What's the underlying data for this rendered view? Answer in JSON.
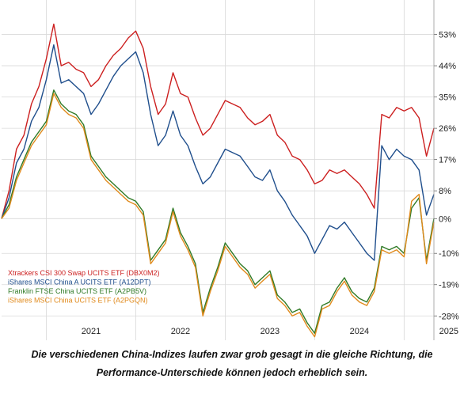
{
  "chart_data": {
    "type": "line",
    "grid": true,
    "legend_placement": "bottom-left",
    "x_ticks": [
      "2021",
      "2022",
      "2023",
      "2024",
      "2025"
    ],
    "y_ticks": [
      "53%",
      "44%",
      "35%",
      "26%",
      "17%",
      "8%",
      "0%",
      "-10%",
      "-19%",
      "-28%"
    ],
    "y_tick_values": [
      53,
      44,
      35,
      26,
      17,
      8,
      0,
      -10,
      -19,
      -28
    ],
    "ylim": [
      -35,
      57
    ],
    "x_range": [
      "2020-07",
      "2025-05"
    ],
    "series": [
      {
        "name": "Xtrackers CSI 300 Swap UCITS ETF (DBX0M2)",
        "color": "#cc1f1f",
        "points": [
          [
            "2020-07",
            0
          ],
          [
            "2020-08",
            8
          ],
          [
            "2020-09",
            20
          ],
          [
            "2020-10",
            24
          ],
          [
            "2020-11",
            33
          ],
          [
            "2020-12",
            38
          ],
          [
            "2021-01",
            46
          ],
          [
            "2021-02",
            56
          ],
          [
            "2021-03",
            44
          ],
          [
            "2021-04",
            45
          ],
          [
            "2021-05",
            43
          ],
          [
            "2021-06",
            42
          ],
          [
            "2021-07",
            38
          ],
          [
            "2021-08",
            40
          ],
          [
            "2021-09",
            44
          ],
          [
            "2021-10",
            47
          ],
          [
            "2021-11",
            49
          ],
          [
            "2021-12",
            52
          ],
          [
            "2022-01",
            54
          ],
          [
            "2022-02",
            49
          ],
          [
            "2022-03",
            38
          ],
          [
            "2022-04",
            30
          ],
          [
            "2022-05",
            33
          ],
          [
            "2022-06",
            42
          ],
          [
            "2022-07",
            36
          ],
          [
            "2022-08",
            35
          ],
          [
            "2022-09",
            29
          ],
          [
            "2022-10",
            24
          ],
          [
            "2022-11",
            26
          ],
          [
            "2022-12",
            30
          ],
          [
            "2023-01",
            34
          ],
          [
            "2023-02",
            33
          ],
          [
            "2023-03",
            32
          ],
          [
            "2023-04",
            29
          ],
          [
            "2023-05",
            27
          ],
          [
            "2023-06",
            28
          ],
          [
            "2023-07",
            30
          ],
          [
            "2023-08",
            24
          ],
          [
            "2023-09",
            22
          ],
          [
            "2023-10",
            18
          ],
          [
            "2023-11",
            17
          ],
          [
            "2023-12",
            14
          ],
          [
            "2024-01",
            10
          ],
          [
            "2024-02",
            11
          ],
          [
            "2024-03",
            14
          ],
          [
            "2024-04",
            13
          ],
          [
            "2024-05",
            14
          ],
          [
            "2024-06",
            12
          ],
          [
            "2024-07",
            10
          ],
          [
            "2024-08",
            7
          ],
          [
            "2024-09",
            3
          ],
          [
            "2024-10",
            30
          ],
          [
            "2024-11",
            29
          ],
          [
            "2024-12",
            32
          ],
          [
            "2025-01",
            31
          ],
          [
            "2025-02",
            32
          ],
          [
            "2025-03",
            29
          ],
          [
            "2025-04",
            18
          ],
          [
            "2025-05",
            26
          ]
        ]
      },
      {
        "name": "iShares MSCI China A UCITS ETF (A12DPT)",
        "color": "#1f4e8c",
        "points": [
          [
            "2020-07",
            0
          ],
          [
            "2020-08",
            6
          ],
          [
            "2020-09",
            16
          ],
          [
            "2020-10",
            20
          ],
          [
            "2020-11",
            28
          ],
          [
            "2020-12",
            32
          ],
          [
            "2021-01",
            40
          ],
          [
            "2021-02",
            50
          ],
          [
            "2021-03",
            39
          ],
          [
            "2021-04",
            40
          ],
          [
            "2021-05",
            38
          ],
          [
            "2021-06",
            36
          ],
          [
            "2021-07",
            30
          ],
          [
            "2021-08",
            33
          ],
          [
            "2021-09",
            37
          ],
          [
            "2021-10",
            41
          ],
          [
            "2021-11",
            44
          ],
          [
            "2021-12",
            46
          ],
          [
            "2022-01",
            48
          ],
          [
            "2022-02",
            42
          ],
          [
            "2022-03",
            30
          ],
          [
            "2022-04",
            21
          ],
          [
            "2022-05",
            24
          ],
          [
            "2022-06",
            31
          ],
          [
            "2022-07",
            24
          ],
          [
            "2022-08",
            21
          ],
          [
            "2022-09",
            15
          ],
          [
            "2022-10",
            10
          ],
          [
            "2022-11",
            12
          ],
          [
            "2022-12",
            16
          ],
          [
            "2023-01",
            20
          ],
          [
            "2023-02",
            19
          ],
          [
            "2023-03",
            18
          ],
          [
            "2023-04",
            15
          ],
          [
            "2023-05",
            12
          ],
          [
            "2023-06",
            11
          ],
          [
            "2023-07",
            14
          ],
          [
            "2023-08",
            8
          ],
          [
            "2023-09",
            5
          ],
          [
            "2023-10",
            1
          ],
          [
            "2023-11",
            -2
          ],
          [
            "2023-12",
            -5
          ],
          [
            "2024-01",
            -10
          ],
          [
            "2024-02",
            -6
          ],
          [
            "2024-03",
            -2
          ],
          [
            "2024-04",
            -3
          ],
          [
            "2024-05",
            -1
          ],
          [
            "2024-06",
            -4
          ],
          [
            "2024-07",
            -7
          ],
          [
            "2024-08",
            -10
          ],
          [
            "2024-09",
            -12
          ],
          [
            "2024-10",
            21
          ],
          [
            "2024-11",
            17
          ],
          [
            "2024-12",
            20
          ],
          [
            "2025-01",
            18
          ],
          [
            "2025-02",
            17
          ],
          [
            "2025-03",
            14
          ],
          [
            "2025-04",
            1
          ],
          [
            "2025-05",
            7
          ]
        ]
      },
      {
        "name": "Franklin FTSE China UCITS ETF (A2PB5V)",
        "color": "#2f7a26",
        "points": [
          [
            "2020-07",
            0
          ],
          [
            "2020-08",
            4
          ],
          [
            "2020-09",
            12
          ],
          [
            "2020-10",
            17
          ],
          [
            "2020-11",
            22
          ],
          [
            "2020-12",
            25
          ],
          [
            "2021-01",
            28
          ],
          [
            "2021-02",
            37
          ],
          [
            "2021-03",
            33
          ],
          [
            "2021-04",
            31
          ],
          [
            "2021-05",
            30
          ],
          [
            "2021-06",
            27
          ],
          [
            "2021-07",
            18
          ],
          [
            "2021-08",
            15
          ],
          [
            "2021-09",
            12
          ],
          [
            "2021-10",
            10
          ],
          [
            "2021-11",
            8
          ],
          [
            "2021-12",
            6
          ],
          [
            "2022-01",
            5
          ],
          [
            "2022-02",
            2
          ],
          [
            "2022-03",
            -12
          ],
          [
            "2022-04",
            -9
          ],
          [
            "2022-05",
            -6
          ],
          [
            "2022-06",
            3
          ],
          [
            "2022-07",
            -4
          ],
          [
            "2022-08",
            -8
          ],
          [
            "2022-09",
            -13
          ],
          [
            "2022-10",
            -27
          ],
          [
            "2022-11",
            -20
          ],
          [
            "2022-12",
            -14
          ],
          [
            "2023-01",
            -7
          ],
          [
            "2023-02",
            -10
          ],
          [
            "2023-03",
            -13
          ],
          [
            "2023-04",
            -15
          ],
          [
            "2023-05",
            -19
          ],
          [
            "2023-06",
            -17
          ],
          [
            "2023-07",
            -15
          ],
          [
            "2023-08",
            -22
          ],
          [
            "2023-09",
            -24
          ],
          [
            "2023-10",
            -27
          ],
          [
            "2023-11",
            -26
          ],
          [
            "2023-12",
            -30
          ],
          [
            "2024-01",
            -33
          ],
          [
            "2024-02",
            -25
          ],
          [
            "2024-03",
            -24
          ],
          [
            "2024-04",
            -20
          ],
          [
            "2024-05",
            -17
          ],
          [
            "2024-06",
            -21
          ],
          [
            "2024-07",
            -23
          ],
          [
            "2024-08",
            -24
          ],
          [
            "2024-09",
            -20
          ],
          [
            "2024-10",
            -8
          ],
          [
            "2024-11",
            -9
          ],
          [
            "2024-12",
            -8
          ],
          [
            "2025-01",
            -10
          ],
          [
            "2025-02",
            3
          ],
          [
            "2025-03",
            6
          ],
          [
            "2025-04",
            -12
          ],
          [
            "2025-05",
            0
          ]
        ]
      },
      {
        "name": "iShares MSCI China UCITS ETF (A2PGQN)",
        "color": "#e08a1c",
        "points": [
          [
            "2020-07",
            0
          ],
          [
            "2020-08",
            3
          ],
          [
            "2020-09",
            11
          ],
          [
            "2020-10",
            16
          ],
          [
            "2020-11",
            21
          ],
          [
            "2020-12",
            24
          ],
          [
            "2021-01",
            27
          ],
          [
            "2021-02",
            36
          ],
          [
            "2021-03",
            32
          ],
          [
            "2021-04",
            30
          ],
          [
            "2021-05",
            29
          ],
          [
            "2021-06",
            26
          ],
          [
            "2021-07",
            17
          ],
          [
            "2021-08",
            14
          ],
          [
            "2021-09",
            11
          ],
          [
            "2021-10",
            9
          ],
          [
            "2021-11",
            7
          ],
          [
            "2021-12",
            5
          ],
          [
            "2022-01",
            4
          ],
          [
            "2022-02",
            1
          ],
          [
            "2022-03",
            -13
          ],
          [
            "2022-04",
            -10
          ],
          [
            "2022-05",
            -7
          ],
          [
            "2022-06",
            2
          ],
          [
            "2022-07",
            -5
          ],
          [
            "2022-08",
            -9
          ],
          [
            "2022-09",
            -14
          ],
          [
            "2022-10",
            -28
          ],
          [
            "2022-11",
            -21
          ],
          [
            "2022-12",
            -15
          ],
          [
            "2023-01",
            -8
          ],
          [
            "2023-02",
            -11
          ],
          [
            "2023-03",
            -14
          ],
          [
            "2023-04",
            -16
          ],
          [
            "2023-05",
            -20
          ],
          [
            "2023-06",
            -18
          ],
          [
            "2023-07",
            -16
          ],
          [
            "2023-08",
            -23
          ],
          [
            "2023-09",
            -25
          ],
          [
            "2023-10",
            -28
          ],
          [
            "2023-11",
            -27
          ],
          [
            "2023-12",
            -31
          ],
          [
            "2024-01",
            -34
          ],
          [
            "2024-02",
            -26
          ],
          [
            "2024-03",
            -25
          ],
          [
            "2024-04",
            -21
          ],
          [
            "2024-05",
            -18
          ],
          [
            "2024-06",
            -22
          ],
          [
            "2024-07",
            -24
          ],
          [
            "2024-08",
            -25
          ],
          [
            "2024-09",
            -21
          ],
          [
            "2024-10",
            -9
          ],
          [
            "2024-11",
            -10
          ],
          [
            "2024-12",
            -9
          ],
          [
            "2025-01",
            -11
          ],
          [
            "2025-02",
            5
          ],
          [
            "2025-03",
            7
          ],
          [
            "2025-04",
            -13
          ],
          [
            "2025-05",
            -1
          ]
        ]
      }
    ]
  },
  "caption_lines": [
    "Die verschiedenen China-Indizes laufen zwar grob gesagt in die gleiche Richtung, die",
    "Performance-Unterschiede können jedoch erheblich sein."
  ]
}
